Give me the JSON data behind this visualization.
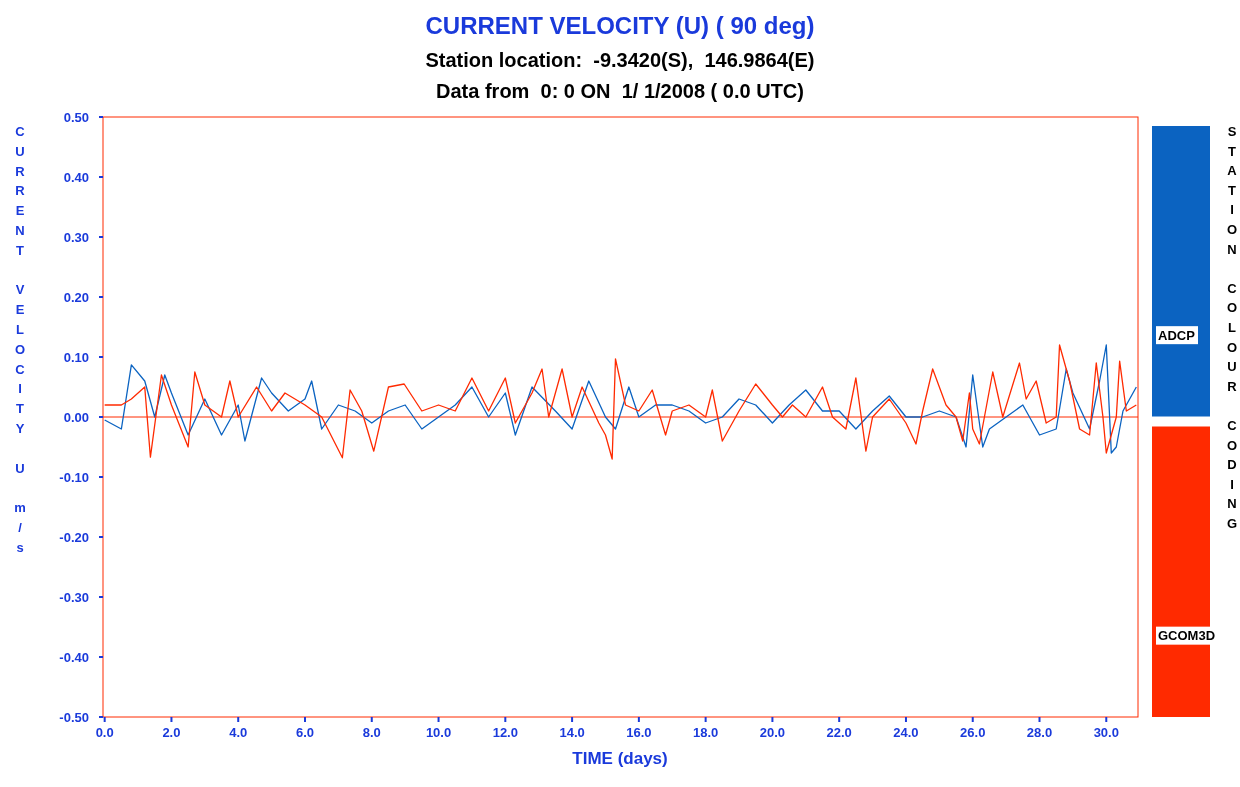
{
  "chart_data": {
    "type": "line",
    "title": "CURRENT VELOCITY (U) ( 90 deg)",
    "subtitle": "Station location:  -9.3420(S),  146.9864(E)\nData from  0: 0 ON  1/ 1/2008 ( 0.0 UTC)",
    "xlabel": "TIME (days)",
    "ylabel": "CURRENT VELOCITY U m/s",
    "legend_title": "STATION COLOUR CODING",
    "legend": "right",
    "grid": false,
    "xlim": [
      -0.05,
      30.95
    ],
    "ylim": [
      -0.5,
      0.5
    ],
    "xticks": [
      {
        "value": 0,
        "label": "0.0"
      },
      {
        "value": 2,
        "label": "2.0"
      },
      {
        "value": 4,
        "label": "4.0"
      },
      {
        "value": 6,
        "label": "6.0"
      },
      {
        "value": 8,
        "label": "8.0"
      },
      {
        "value": 10,
        "label": "10.0"
      },
      {
        "value": 12,
        "label": "12.0"
      },
      {
        "value": 14,
        "label": "14.0"
      },
      {
        "value": 16,
        "label": "16.0"
      },
      {
        "value": 18,
        "label": "18.0"
      },
      {
        "value": 20,
        "label": "20.0"
      },
      {
        "value": 22,
        "label": "22.0"
      },
      {
        "value": 24,
        "label": "24.0"
      },
      {
        "value": 26,
        "label": "26.0"
      },
      {
        "value": 28,
        "label": "28.0"
      },
      {
        "value": 30,
        "label": "30.0"
      }
    ],
    "yticks": [
      {
        "value": -0.5,
        "label": "-0.50"
      },
      {
        "value": -0.4,
        "label": "-0.40"
      },
      {
        "value": -0.3,
        "label": "-0.30"
      },
      {
        "value": -0.2,
        "label": "-0.20"
      },
      {
        "value": -0.1,
        "label": "-0.10"
      },
      {
        "value": 0,
        "label": "0.00"
      },
      {
        "value": 0.1,
        "label": "0.10"
      },
      {
        "value": 0.2,
        "label": "0.20"
      },
      {
        "value": 0.3,
        "label": "0.30"
      },
      {
        "value": 0.4,
        "label": "0.40"
      },
      {
        "value": 0.5,
        "label": "0.50"
      }
    ],
    "ref_lines": [
      {
        "axis": "y",
        "value": 0,
        "label": null,
        "color": "#ff2a00"
      }
    ],
    "series": [
      {
        "name": "ADCP",
        "color": "#0b63c1",
        "x": [
          0,
          0.5,
          0.8,
          1.2,
          1.5,
          1.8,
          2.0,
          2.5,
          3.0,
          3.5,
          4.0,
          4.2,
          4.7,
          5.0,
          5.5,
          6.0,
          6.2,
          6.5,
          7.0,
          7.5,
          8.0,
          8.5,
          9.0,
          9.5,
          10.0,
          10.5,
          11.0,
          11.5,
          12.0,
          12.3,
          12.8,
          13.5,
          14.0,
          14.5,
          15.0,
          15.3,
          15.7,
          16.0,
          16.5,
          17.0,
          17.5,
          18.0,
          18.5,
          19.0,
          19.5,
          20.0,
          20.5,
          21.0,
          21.5,
          22.0,
          22.5,
          23.0,
          23.5,
          24.0,
          24.5,
          25.0,
          25.5,
          25.8,
          26.0,
          26.3,
          26.5,
          27.0,
          27.5,
          28.0,
          28.5,
          28.8,
          29.0,
          29.5,
          29.8,
          30.0,
          30.15,
          30.3,
          30.5,
          30.8,
          30.9
        ],
        "values": [
          -0.005,
          -0.02,
          0.087,
          0.06,
          0.0,
          0.07,
          0.04,
          -0.03,
          0.03,
          -0.03,
          0.02,
          -0.04,
          0.065,
          0.04,
          0.01,
          0.03,
          0.06,
          -0.02,
          0.02,
          0.01,
          -0.01,
          0.01,
          0.02,
          -0.02,
          0.0,
          0.02,
          0.05,
          0.0,
          0.04,
          -0.03,
          0.05,
          0.01,
          -0.02,
          0.06,
          0.0,
          -0.02,
          0.05,
          0.0,
          0.02,
          0.02,
          0.01,
          -0.01,
          0.0,
          0.03,
          0.02,
          -0.01,
          0.02,
          0.045,
          0.01,
          0.01,
          -0.02,
          0.01,
          0.035,
          0.0,
          0.0,
          0.01,
          0.0,
          -0.05,
          0.07,
          -0.05,
          -0.02,
          0.0,
          0.02,
          -0.03,
          -0.02,
          0.08,
          0.04,
          -0.02,
          0.06,
          0.12,
          -0.06,
          -0.05,
          0.01,
          0.04,
          0.05
        ]
      },
      {
        "name": "GCOM3D",
        "color": "#ff2a00",
        "x": [
          0,
          0.5,
          0.8,
          1.2,
          1.37,
          1.7,
          2.0,
          2.5,
          2.7,
          3.0,
          3.5,
          3.75,
          4.0,
          4.55,
          5.0,
          5.4,
          6.0,
          6.5,
          7.12,
          7.35,
          7.7,
          8.06,
          8.5,
          8.97,
          9.5,
          10.0,
          10.5,
          11.0,
          11.5,
          12.0,
          12.3,
          12.8,
          13.1,
          13.3,
          13.7,
          14.0,
          14.3,
          14.8,
          15.0,
          15.2,
          15.3,
          15.6,
          16.0,
          16.4,
          16.8,
          17.0,
          17.5,
          18.0,
          18.2,
          18.5,
          19.0,
          19.5,
          20.0,
          20.3,
          20.6,
          21.0,
          21.5,
          21.8,
          22.2,
          22.5,
          22.8,
          23.0,
          23.5,
          24.0,
          24.3,
          24.5,
          24.8,
          25.2,
          25.5,
          25.7,
          25.9,
          26.0,
          26.2,
          26.6,
          26.9,
          27.4,
          27.6,
          27.9,
          28.2,
          28.5,
          28.6,
          28.9,
          29.2,
          29.5,
          29.7,
          29.9,
          30.0,
          30.3,
          30.4,
          30.6,
          30.9
        ],
        "values": [
          0.02,
          0.02,
          0.03,
          0.05,
          -0.067,
          0.07,
          0.02,
          -0.05,
          0.075,
          0.02,
          0.0,
          0.06,
          0.0,
          0.05,
          0.01,
          0.04,
          0.02,
          0.0,
          -0.068,
          0.045,
          0.01,
          -0.057,
          0.05,
          0.055,
          0.01,
          0.02,
          0.01,
          0.065,
          0.01,
          0.065,
          -0.01,
          0.04,
          0.08,
          0.0,
          0.08,
          0.0,
          0.05,
          -0.01,
          -0.03,
          -0.07,
          0.097,
          0.02,
          0.01,
          0.045,
          -0.03,
          0.01,
          0.02,
          0.0,
          0.045,
          -0.04,
          0.01,
          0.055,
          0.02,
          0.0,
          0.02,
          0.0,
          0.05,
          0.0,
          -0.02,
          0.065,
          -0.057,
          0.0,
          0.03,
          -0.01,
          -0.045,
          0.01,
          0.08,
          0.02,
          0.0,
          -0.04,
          0.04,
          -0.02,
          -0.045,
          0.075,
          0.0,
          0.09,
          0.03,
          0.06,
          -0.01,
          0.0,
          0.12,
          0.06,
          -0.02,
          -0.03,
          0.09,
          0.0,
          -0.06,
          0.0,
          0.093,
          0.01,
          0.02
        ]
      }
    ]
  }
}
